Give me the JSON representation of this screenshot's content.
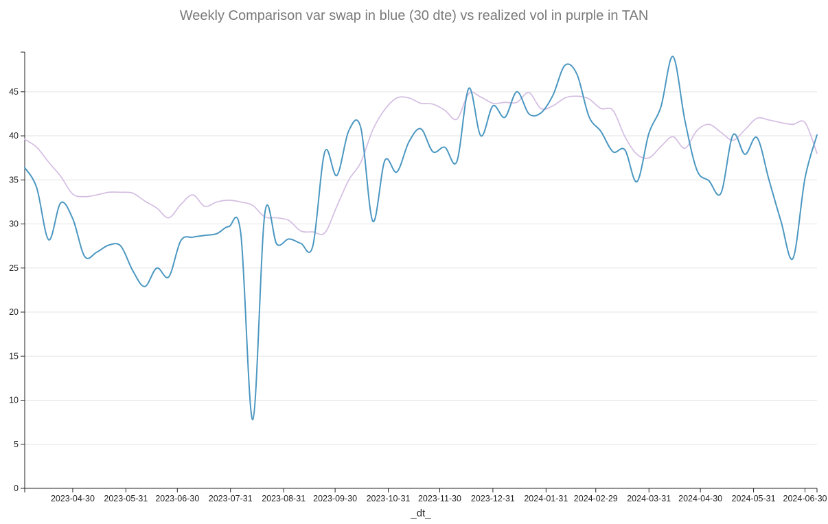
{
  "chart_data": {
    "type": "line",
    "title": "Weekly Comparison var swap in blue (30 dte) vs realized vol in purple in TAN",
    "xlabel": "_dt_",
    "ylabel": "",
    "x_start": "2023-04-02",
    "x_end": "2024-07-07",
    "ylim": [
      0,
      49.5
    ],
    "yticks": [
      0,
      5,
      10,
      15,
      20,
      25,
      30,
      35,
      40,
      45
    ],
    "xticks": [
      "2023-04-30",
      "2023-05-31",
      "2023-06-30",
      "2023-07-31",
      "2023-08-31",
      "2023-09-30",
      "2023-10-31",
      "2023-11-30",
      "2023-12-31",
      "2024-01-31",
      "2024-02-29",
      "2024-03-31",
      "2024-04-30",
      "2024-05-31",
      "2024-06-30"
    ],
    "grid": true,
    "series": [
      {
        "color": "#4b97c1",
        "points": [
          [
            "2023-04-02",
            36.4
          ],
          [
            "2023-04-09",
            34.1
          ],
          [
            "2023-04-16",
            28.2
          ],
          [
            "2023-04-23",
            32.4
          ],
          [
            "2023-04-30",
            30.6
          ],
          [
            "2023-05-07",
            26.3
          ],
          [
            "2023-05-14",
            26.8
          ],
          [
            "2023-05-21",
            27.6
          ],
          [
            "2023-05-28",
            27.5
          ],
          [
            "2023-06-04",
            24.7
          ],
          [
            "2023-06-11",
            22.9
          ],
          [
            "2023-06-18",
            25.0
          ],
          [
            "2023-06-25",
            24.0
          ],
          [
            "2023-07-02",
            28.1
          ],
          [
            "2023-07-09",
            28.5
          ],
          [
            "2023-07-16",
            28.7
          ],
          [
            "2023-07-23",
            28.9
          ],
          [
            "2023-07-30",
            29.7
          ],
          [
            "2023-08-06",
            28.9
          ],
          [
            "2023-08-13",
            7.8
          ],
          [
            "2023-08-20",
            31.2
          ],
          [
            "2023-08-27",
            27.7
          ],
          [
            "2023-09-03",
            28.3
          ],
          [
            "2023-09-10",
            27.8
          ],
          [
            "2023-09-17",
            27.5
          ],
          [
            "2023-09-24",
            38.2
          ],
          [
            "2023-10-01",
            35.5
          ],
          [
            "2023-10-08",
            40.6
          ],
          [
            "2023-10-15",
            40.9
          ],
          [
            "2023-10-22",
            30.3
          ],
          [
            "2023-10-29",
            37.2
          ],
          [
            "2023-11-05",
            35.9
          ],
          [
            "2023-11-12",
            39.3
          ],
          [
            "2023-11-19",
            40.8
          ],
          [
            "2023-11-26",
            38.2
          ],
          [
            "2023-12-03",
            38.7
          ],
          [
            "2023-12-10",
            37.1
          ],
          [
            "2023-12-17",
            45.4
          ],
          [
            "2023-12-24",
            40.0
          ],
          [
            "2023-12-31",
            43.4
          ],
          [
            "2024-01-07",
            42.1
          ],
          [
            "2024-01-14",
            45.0
          ],
          [
            "2024-01-21",
            42.5
          ],
          [
            "2024-01-28",
            42.6
          ],
          [
            "2024-02-04",
            44.6
          ],
          [
            "2024-02-11",
            48.0
          ],
          [
            "2024-02-18",
            47.0
          ],
          [
            "2024-02-25",
            42.2
          ],
          [
            "2024-03-03",
            40.5
          ],
          [
            "2024-03-10",
            38.2
          ],
          [
            "2024-03-17",
            38.4
          ],
          [
            "2024-03-24",
            34.8
          ],
          [
            "2024-03-31",
            40.3
          ],
          [
            "2024-04-07",
            43.3
          ],
          [
            "2024-04-14",
            49.0
          ],
          [
            "2024-04-21",
            41.7
          ],
          [
            "2024-04-28",
            36.1
          ],
          [
            "2024-05-05",
            34.9
          ],
          [
            "2024-05-12",
            33.5
          ],
          [
            "2024-05-19",
            40.1
          ],
          [
            "2024-05-26",
            37.9
          ],
          [
            "2024-06-02",
            39.8
          ],
          [
            "2024-06-09",
            35.0
          ],
          [
            "2024-06-16",
            30.3
          ],
          [
            "2024-06-23",
            26.1
          ],
          [
            "2024-06-30",
            35.2
          ],
          [
            "2024-07-07",
            40.1
          ]
        ]
      },
      {
        "color": "#d4bde2",
        "points": [
          [
            "2023-04-02",
            39.6
          ],
          [
            "2023-04-09",
            38.7
          ],
          [
            "2023-04-16",
            37.0
          ],
          [
            "2023-04-23",
            35.4
          ],
          [
            "2023-04-30",
            33.4
          ],
          [
            "2023-05-07",
            33.1
          ],
          [
            "2023-05-14",
            33.3
          ],
          [
            "2023-05-21",
            33.6
          ],
          [
            "2023-05-28",
            33.6
          ],
          [
            "2023-06-04",
            33.5
          ],
          [
            "2023-06-11",
            32.6
          ],
          [
            "2023-06-18",
            31.8
          ],
          [
            "2023-06-25",
            30.7
          ],
          [
            "2023-07-02",
            32.2
          ],
          [
            "2023-07-09",
            33.3
          ],
          [
            "2023-07-16",
            32.0
          ],
          [
            "2023-07-23",
            32.5
          ],
          [
            "2023-07-30",
            32.7
          ],
          [
            "2023-08-06",
            32.5
          ],
          [
            "2023-08-13",
            32.1
          ],
          [
            "2023-08-20",
            30.8
          ],
          [
            "2023-08-27",
            30.7
          ],
          [
            "2023-09-03",
            30.4
          ],
          [
            "2023-09-10",
            29.2
          ],
          [
            "2023-09-17",
            29.1
          ],
          [
            "2023-09-24",
            29.0
          ],
          [
            "2023-10-01",
            32.0
          ],
          [
            "2023-10-08",
            35.0
          ],
          [
            "2023-10-15",
            37.0
          ],
          [
            "2023-10-22",
            40.7
          ],
          [
            "2023-10-29",
            43.0
          ],
          [
            "2023-11-05",
            44.3
          ],
          [
            "2023-11-12",
            44.3
          ],
          [
            "2023-11-19",
            43.7
          ],
          [
            "2023-11-26",
            43.6
          ],
          [
            "2023-12-03",
            42.9
          ],
          [
            "2023-12-10",
            41.9
          ],
          [
            "2023-12-17",
            44.8
          ],
          [
            "2023-12-24",
            44.4
          ],
          [
            "2023-12-31",
            43.7
          ],
          [
            "2024-01-07",
            43.8
          ],
          [
            "2024-01-14",
            43.8
          ],
          [
            "2024-01-21",
            44.9
          ],
          [
            "2024-01-28",
            43.1
          ],
          [
            "2024-02-04",
            43.4
          ],
          [
            "2024-02-11",
            44.3
          ],
          [
            "2024-02-18",
            44.5
          ],
          [
            "2024-02-25",
            44.2
          ],
          [
            "2024-03-03",
            43.1
          ],
          [
            "2024-03-10",
            42.9
          ],
          [
            "2024-03-17",
            39.9
          ],
          [
            "2024-03-24",
            37.9
          ],
          [
            "2024-03-31",
            37.5
          ],
          [
            "2024-04-07",
            38.8
          ],
          [
            "2024-04-14",
            39.9
          ],
          [
            "2024-04-21",
            38.6
          ],
          [
            "2024-04-28",
            40.6
          ],
          [
            "2024-05-05",
            41.3
          ],
          [
            "2024-05-12",
            40.4
          ],
          [
            "2024-05-19",
            39.5
          ],
          [
            "2024-05-26",
            40.7
          ],
          [
            "2024-06-02",
            42.0
          ],
          [
            "2024-06-09",
            41.8
          ],
          [
            "2024-06-16",
            41.5
          ],
          [
            "2024-06-23",
            41.3
          ],
          [
            "2024-06-30",
            41.5
          ],
          [
            "2024-07-07",
            38.0
          ]
        ]
      }
    ]
  }
}
